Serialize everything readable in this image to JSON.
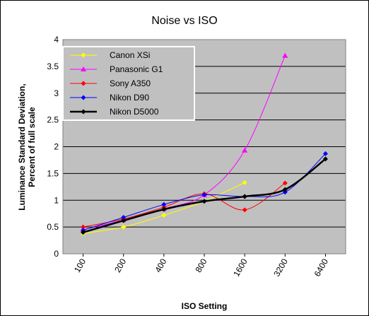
{
  "chart_data": {
    "type": "line",
    "title": "Noise vs ISO",
    "xlabel": "ISO Setting",
    "ylabel": [
      "Luminance Standard Deviation,",
      "Percent of full scale"
    ],
    "categories": [
      "100",
      "200",
      "400",
      "800",
      "1600",
      "3200",
      "6400"
    ],
    "ylim": [
      0,
      4
    ],
    "yticks": [
      "0",
      "0.5",
      "1",
      "1.5",
      "2",
      "2.5",
      "3",
      "3.5",
      "4"
    ],
    "grid": true,
    "legend": "top-left",
    "plot_background": "#c0c0c0",
    "series": [
      {
        "name": "Canon XSi",
        "color": "#ffff00",
        "marker": "diamond",
        "values": [
          0.38,
          0.5,
          0.72,
          0.98,
          1.33,
          null,
          null
        ]
      },
      {
        "name": "Panasonic G1",
        "color": "#ff00ff",
        "marker": "triangle",
        "values": [
          0.45,
          0.63,
          0.84,
          1.1,
          1.93,
          3.7,
          null
        ]
      },
      {
        "name": "Sony A350",
        "color": "#ff0000",
        "marker": "diamond",
        "values": [
          0.5,
          0.65,
          0.87,
          1.12,
          0.82,
          1.32,
          null
        ]
      },
      {
        "name": "Nikon D90",
        "color": "#0000ff",
        "marker": "diamond",
        "values": [
          0.44,
          0.68,
          0.92,
          1.1,
          1.07,
          1.15,
          1.87
        ]
      },
      {
        "name": "Nikon D5000",
        "color": "#000000",
        "marker": "diamond",
        "values": [
          0.4,
          0.62,
          0.83,
          0.98,
          1.07,
          1.2,
          1.77
        ]
      }
    ]
  }
}
